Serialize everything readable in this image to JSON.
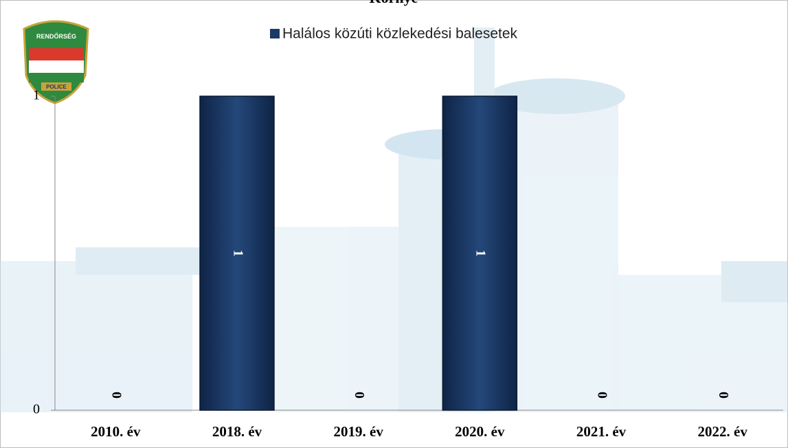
{
  "chart_data": {
    "type": "bar",
    "title": "Környe",
    "categories": [
      "2010. év",
      "2018. év",
      "2019. év",
      "2020. év",
      "2021. év",
      "2022. év"
    ],
    "series": [
      {
        "name": "Halálos közúti közlekedési balesetek",
        "color": "#1b3a66",
        "values": [
          0,
          1,
          0,
          1,
          0,
          0
        ]
      }
    ],
    "ylim": [
      0,
      1
    ],
    "yticks": [
      0,
      1
    ],
    "legend": "top",
    "logo": {
      "top": "RENDŐRSÉG",
      "bottom": "POLICE"
    }
  }
}
